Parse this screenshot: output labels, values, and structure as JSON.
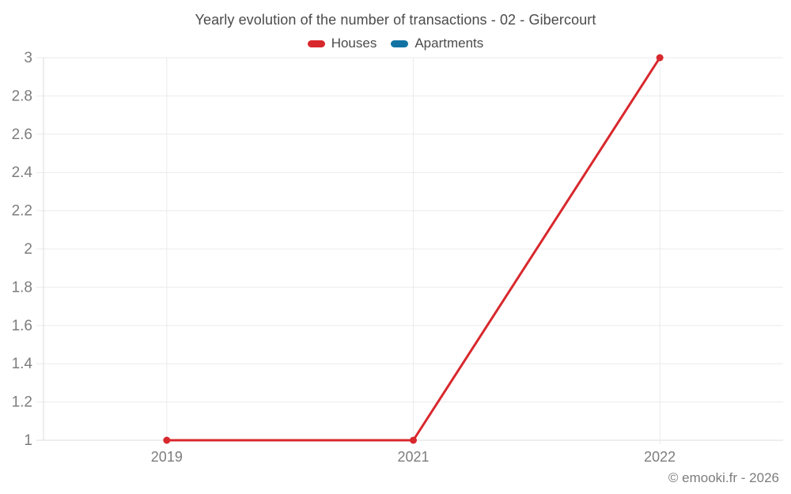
{
  "chart_data": {
    "type": "line",
    "title": "Yearly evolution of the number of transactions - 02 - Gibercourt",
    "categories": [
      "2019",
      "2021",
      "2022"
    ],
    "series": [
      {
        "name": "Houses",
        "color": "#d8282d",
        "values": [
          1,
          1,
          3
        ]
      },
      {
        "name": "Apartments",
        "color": "#1273a3",
        "values": []
      }
    ],
    "ylim": [
      1,
      3
    ],
    "y_tick_labels": [
      "1",
      "1.2",
      "1.4",
      "1.6",
      "1.8",
      "2",
      "2.2",
      "2.4",
      "2.6",
      "2.8",
      "3"
    ],
    "grid": true,
    "legend_position": "top",
    "colors": {
      "title_text": "#4b4b4b",
      "axis_text": "#7d7d7d",
      "gridline": "#ebebeb",
      "axis_line": "#dcdcdc"
    }
  },
  "footer": {
    "text": "© emooki.fr - 2026"
  }
}
